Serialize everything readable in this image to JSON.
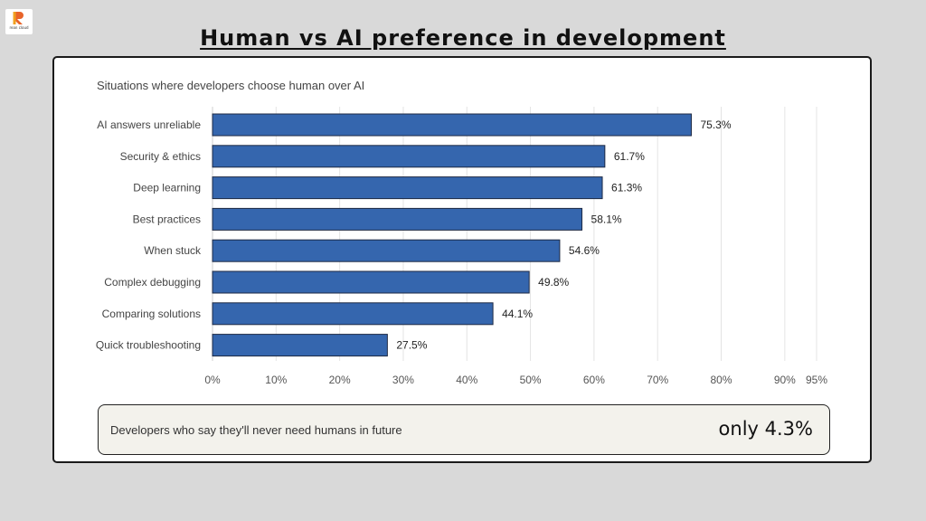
{
  "brand": {
    "logo_text": "rean cloud",
    "accent": "#e8642a"
  },
  "page": {
    "title": "Human vs AI preference in development"
  },
  "chart_data": {
    "type": "bar",
    "orientation": "horizontal",
    "subtitle": "Situations where developers choose human over AI",
    "categories": [
      "AI answers unreliable",
      "Security & ethics",
      "Deep learning",
      "Best practices",
      "When stuck",
      "Complex debugging",
      "Comparing solutions",
      "Quick troubleshooting"
    ],
    "values": [
      75.3,
      61.7,
      61.3,
      58.1,
      54.6,
      49.8,
      44.1,
      27.5
    ],
    "value_labels": [
      "75.3%",
      "61.7%",
      "61.3%",
      "58.1%",
      "54.6%",
      "49.8%",
      "44.1%",
      "27.5%"
    ],
    "xlim": [
      0,
      95
    ],
    "ticks": [
      0,
      10,
      20,
      30,
      40,
      50,
      60,
      70,
      80,
      90,
      95
    ],
    "tick_labels": [
      "0%",
      "10%",
      "20%",
      "30%",
      "40%",
      "50%",
      "60%",
      "70%",
      "80%",
      "90%",
      "95%"
    ],
    "grid": "vertical",
    "bar_color": "#3566ae",
    "bar_border": "#1e2a44"
  },
  "callout": {
    "label": "Developers who say they'll never need humans in future",
    "value": "only 4.3%"
  }
}
